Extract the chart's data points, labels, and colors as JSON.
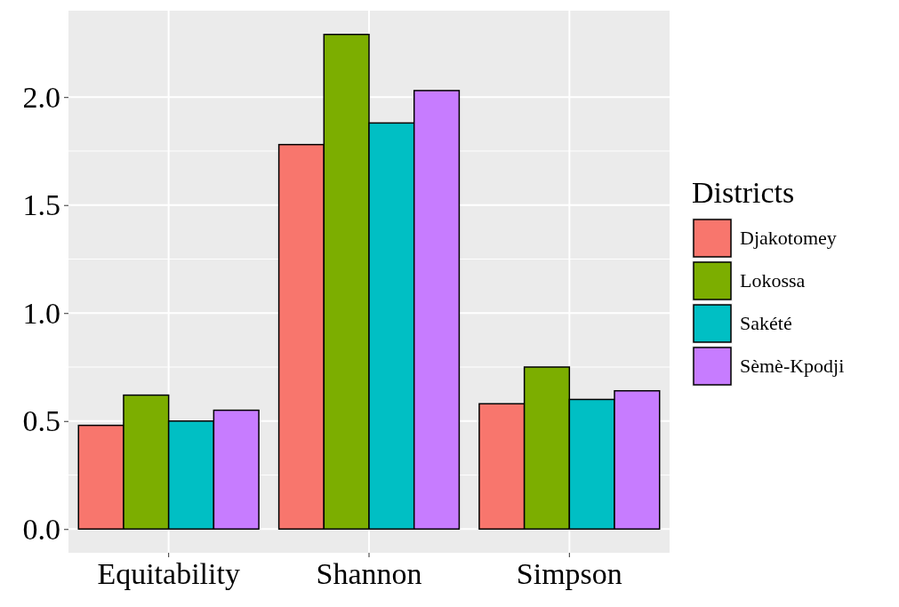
{
  "chart_data": {
    "type": "bar",
    "categories": [
      "Equitability",
      "Shannon",
      "Simpson"
    ],
    "series": [
      {
        "name": "Djakotomey",
        "color": "#f8766d",
        "values": [
          0.48,
          1.78,
          0.58
        ]
      },
      {
        "name": "Lokossa",
        "color": "#7cae00",
        "values": [
          0.62,
          2.29,
          0.75
        ]
      },
      {
        "name": "Sakété",
        "color": "#00bfc4",
        "values": [
          0.5,
          1.88,
          0.6
        ]
      },
      {
        "name": "Sèmè-Kpodji",
        "color": "#c77cff",
        "values": [
          0.55,
          2.03,
          0.64
        ]
      }
    ],
    "ylim": [
      -0.11,
      2.4
    ],
    "yticks": [
      {
        "value": 0,
        "label": "0.0"
      },
      0.5,
      {
        "value": 1,
        "label": "1.0"
      },
      1.5,
      {
        "value": 2,
        "label": "2.0"
      }
    ],
    "grid": true,
    "legend": "right",
    "legend_title": "Districts"
  }
}
